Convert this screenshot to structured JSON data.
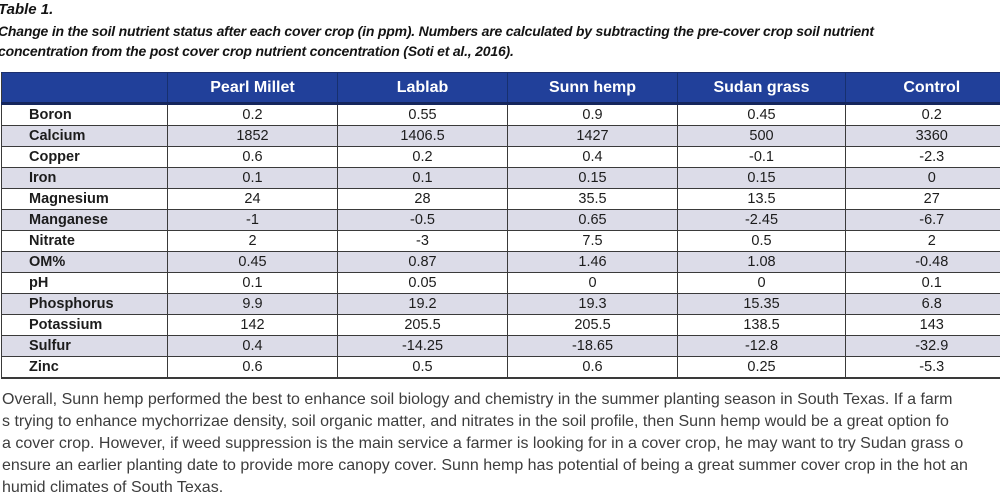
{
  "title": "Table 1.",
  "caption_lines": [
    "Change in the soil nutrient status after each cover crop (in ppm). Numbers are calculated by subtracting the pre-cover crop soil nutrient",
    "concentration from the post cover crop nutrient concentration (Soti et al., 2016)."
  ],
  "table": {
    "columns": [
      "",
      "Pearl Millet",
      "Lablab",
      "Sunn hemp",
      "Sudan grass",
      "Control"
    ],
    "rows": [
      {
        "label": "Boron",
        "values": [
          "0.2",
          "0.55",
          "0.9",
          "0.45",
          "0.2"
        ]
      },
      {
        "label": "Calcium",
        "values": [
          "1852",
          "1406.5",
          "1427",
          "500",
          "3360"
        ]
      },
      {
        "label": "Copper",
        "values": [
          "0.6",
          "0.2",
          "0.4",
          "-0.1",
          "-2.3"
        ]
      },
      {
        "label": "Iron",
        "values": [
          "0.1",
          "0.1",
          "0.15",
          "0.15",
          "0"
        ]
      },
      {
        "label": "Magnesium",
        "values": [
          "24",
          "28",
          "35.5",
          "13.5",
          "27"
        ]
      },
      {
        "label": "Manganese",
        "values": [
          "-1",
          "-0.5",
          "0.65",
          "-2.45",
          "-6.7"
        ]
      },
      {
        "label": "Nitrate",
        "values": [
          "2",
          "-3",
          "7.5",
          "0.5",
          "2"
        ]
      },
      {
        "label": "OM%",
        "values": [
          "0.45",
          "0.87",
          "1.46",
          "1.08",
          "-0.48"
        ]
      },
      {
        "label": "pH",
        "values": [
          "0.1",
          "0.05",
          "0",
          "0",
          "0.1"
        ]
      },
      {
        "label": "Phosphorus",
        "values": [
          "9.9",
          "19.2",
          "19.3",
          "15.35",
          "6.8"
        ]
      },
      {
        "label": "Potassium",
        "values": [
          "142",
          "205.5",
          "205.5",
          "138.5",
          "143"
        ]
      },
      {
        "label": "Sulfur",
        "values": [
          "0.4",
          "-14.25",
          "-18.65",
          "-12.8",
          "-32.9"
        ]
      },
      {
        "label": "Zinc",
        "values": [
          "0.6",
          "0.5",
          "0.6",
          "0.25",
          "-5.3"
        ]
      }
    ]
  },
  "footer_lines": [
    "Overall, Sunn hemp performed the best to enhance soil biology and chemistry in the summer planting season in South Texas. If a farm",
    "s trying to enhance mychorrizae density, soil organic matter, and nitrates in the soil profile, then Sunn hemp would be a great option fo",
    "a cover crop. However, if weed suppression is the main service a farmer is looking for in a cover crop, he may want to try Sudan grass o",
    "ensure an earlier planting date to provide more canopy cover. Sunn hemp has potential of being a great summer cover crop in the hot an",
    "humid climates of South Texas."
  ],
  "colors": {
    "header_bg": "#21409a",
    "header_divider": "#17306f",
    "header_underline": "#15265c",
    "row_stripe": "#dcdce8",
    "grid_line": "#3a3a3a",
    "paragraph_text": "#3d3d3d"
  }
}
